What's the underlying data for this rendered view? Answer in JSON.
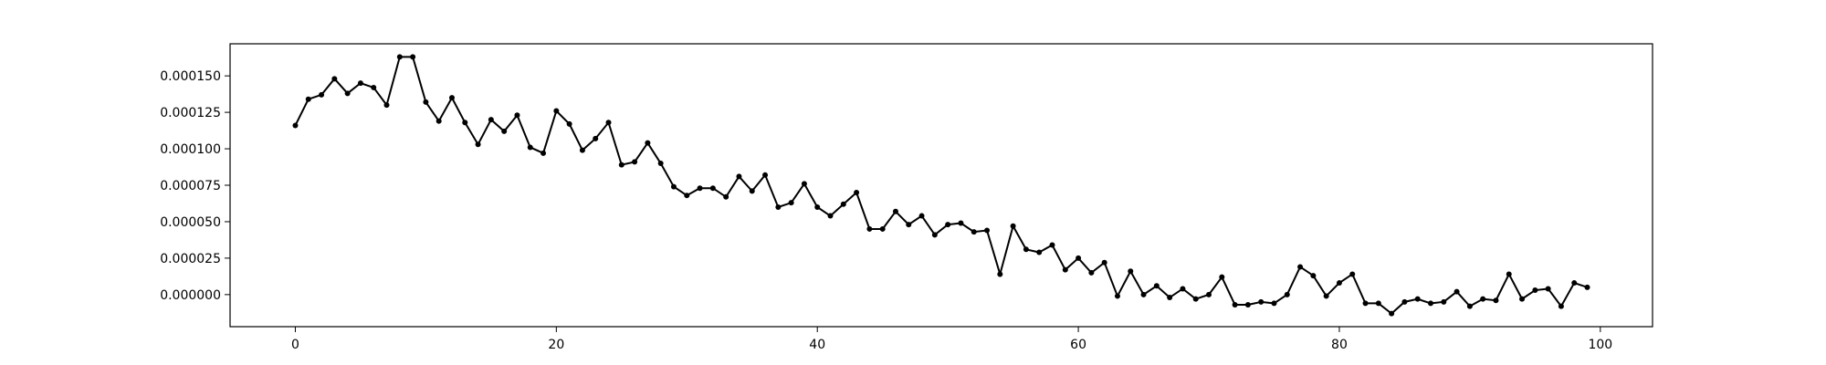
{
  "chart_data": {
    "type": "line",
    "title": "",
    "xlabel": "",
    "ylabel": "",
    "xlim": [
      -5,
      104
    ],
    "ylim": [
      -2.2e-05,
      0.000172
    ],
    "xticks": [
      0,
      20,
      40,
      60,
      80,
      100
    ],
    "xtick_labels": [
      "0",
      "20",
      "40",
      "60",
      "80",
      "100"
    ],
    "yticks": [
      0,
      2.5e-05,
      5e-05,
      7.5e-05,
      0.0001,
      0.000125,
      0.00015
    ],
    "ytick_labels": [
      "0.000000",
      "0.000025",
      "0.000050",
      "0.000075",
      "0.000100",
      "0.000125",
      "0.000150"
    ],
    "grid": false,
    "line_color": "#000000",
    "marker": "circle",
    "series": [
      {
        "x": [
          0,
          1,
          2,
          3,
          4,
          5,
          6,
          7,
          8,
          9,
          10,
          11,
          12,
          13,
          14,
          15,
          16,
          17,
          18,
          19,
          20,
          21,
          22,
          23,
          24,
          25,
          26,
          27,
          28,
          29,
          30,
          31,
          32,
          33,
          34,
          35,
          36,
          37,
          38,
          39,
          40,
          41,
          42,
          43,
          44,
          45,
          46,
          47,
          48,
          49,
          50,
          51,
          52,
          53,
          54,
          55,
          56,
          57,
          58,
          59,
          60,
          61,
          62,
          63,
          64,
          65,
          66,
          67,
          68,
          69,
          70,
          71,
          72,
          73,
          74,
          75,
          76,
          77,
          78,
          79,
          80,
          81,
          82,
          83,
          84,
          85,
          86,
          87,
          88,
          89,
          90,
          91,
          92,
          93,
          94,
          95,
          96,
          97,
          98,
          99
        ],
        "values": [
          0.000116,
          0.000134,
          0.000137,
          0.000148,
          0.000138,
          0.000145,
          0.000142,
          0.00013,
          0.000163,
          0.000163,
          0.000132,
          0.000119,
          0.000135,
          0.000118,
          0.000103,
          0.00012,
          0.000112,
          0.000123,
          0.000101,
          9.7e-05,
          0.000126,
          0.000117,
          9.9e-05,
          0.000107,
          0.000118,
          8.9e-05,
          9.1e-05,
          0.000104,
          9e-05,
          7.4e-05,
          6.8e-05,
          7.3e-05,
          7.3e-05,
          6.7e-05,
          8.1e-05,
          7.1e-05,
          8.2e-05,
          6e-05,
          6.3e-05,
          7.6e-05,
          6e-05,
          5.4e-05,
          6.2e-05,
          7e-05,
          4.5e-05,
          4.5e-05,
          5.7e-05,
          4.8e-05,
          5.4e-05,
          4.1e-05,
          4.8e-05,
          4.9e-05,
          4.3e-05,
          4.4e-05,
          1.4e-05,
          4.7e-05,
          3.1e-05,
          2.9e-05,
          3.4e-05,
          1.7e-05,
          2.5e-05,
          1.5e-05,
          2.2e-05,
          -1e-06,
          1.6e-05,
          0,
          6e-06,
          -2e-06,
          4e-06,
          -3e-06,
          0,
          1.2e-05,
          -7e-06,
          -7e-06,
          -5e-06,
          -6e-06,
          0,
          1.9e-05,
          1.3e-05,
          -1e-06,
          8e-06,
          1.4e-05,
          -6e-06,
          -6e-06,
          -1.3e-05,
          -5e-06,
          -3e-06,
          -6e-06,
          -5e-06,
          2e-06,
          -8e-06,
          -3e-06,
          -4e-06,
          1.4e-05,
          -3e-06,
          3e-06,
          4e-06,
          -8e-06,
          8e-06,
          5e-06
        ]
      }
    ]
  }
}
